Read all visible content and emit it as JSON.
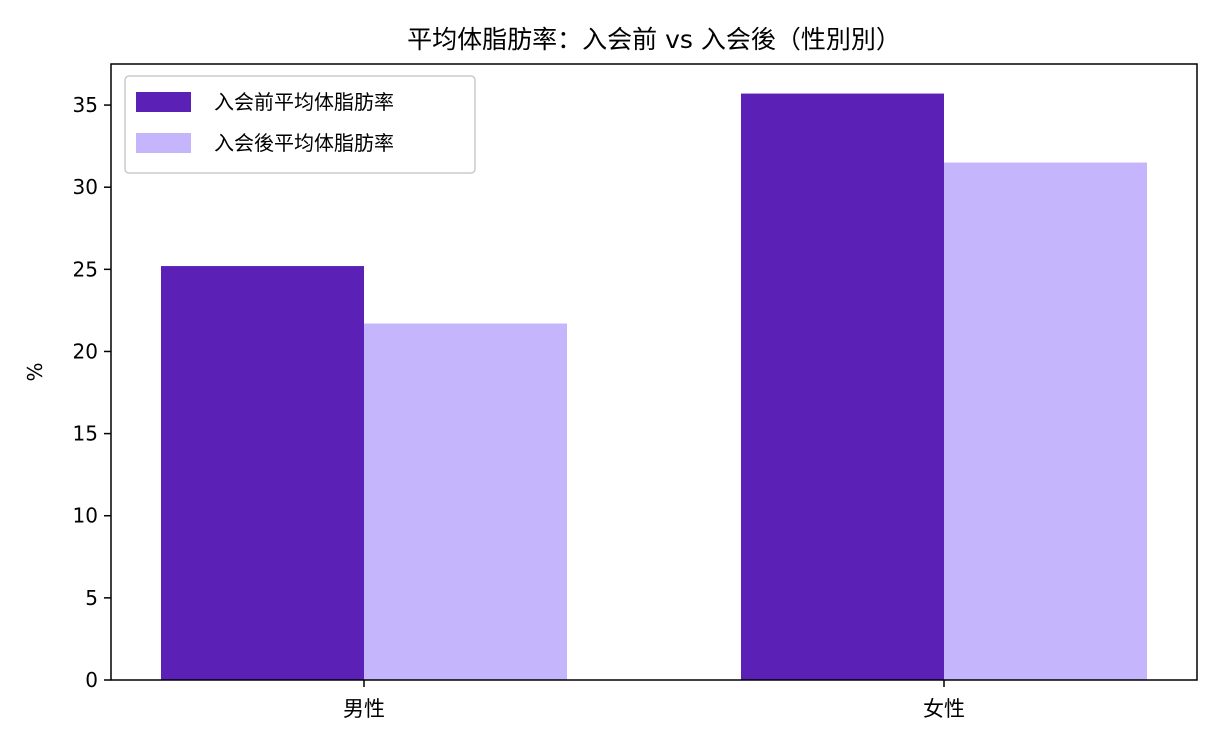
{
  "chart_data": {
    "type": "bar",
    "title": "平均体脂肪率：入会前 vs 入会後（性別別）",
    "xlabel": "",
    "ylabel": "%",
    "categories": [
      "男性",
      "女性"
    ],
    "series": [
      {
        "name": "入会前平均体脂肪率",
        "color": "#5b21b6",
        "values": [
          25.2,
          35.7
        ]
      },
      {
        "name": "入会後平均体脂肪率",
        "color": "#c4b5fd",
        "values": [
          21.7,
          31.5
        ]
      }
    ],
    "ylim": [
      0,
      37.5
    ],
    "yticks": [
      0,
      5,
      10,
      15,
      20,
      25,
      30,
      35
    ],
    "grid": false,
    "legend_position": "top-left"
  }
}
